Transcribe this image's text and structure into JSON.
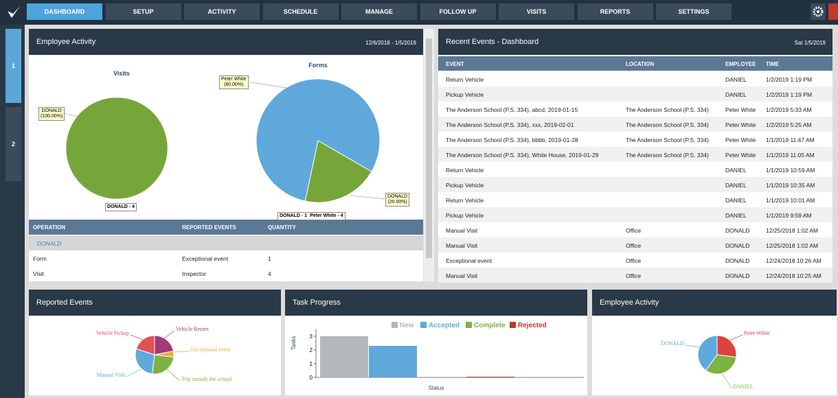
{
  "nav": {
    "items": [
      "DASHBOARD",
      "SETUP",
      "ACTIVITY",
      "SCHEDULE",
      "MANAGE",
      "FOLLOW UP",
      "VISITS",
      "REPORTS",
      "SETTINGS"
    ]
  },
  "side_tabs": [
    "1",
    "2"
  ],
  "employee_activity": {
    "title": "Employee Activity",
    "date_range": "12/6/2018 - 1/5/2019",
    "visits": {
      "type": "pie",
      "title": "Visits",
      "categories": [
        "DONALD"
      ],
      "values": [
        100
      ],
      "value_labels": [
        "(100.00%)"
      ],
      "colors": [
        "#76a63a"
      ],
      "legend": [
        "DONALD - 4"
      ]
    },
    "forms": {
      "type": "pie",
      "title": "Forms",
      "categories": [
        "Peter White",
        "DONALD"
      ],
      "values": [
        80,
        20
      ],
      "value_labels": [
        "(80.00%)",
        "(20.00%)"
      ],
      "colors": [
        "#5fa8dc",
        "#76a63a"
      ],
      "legend": [
        "DONALD - 1",
        "Peter White - 4"
      ]
    },
    "table": {
      "headers": [
        "OPERATION",
        "REPORTED EVENTS",
        "QUANTITY"
      ],
      "group": "DONALD",
      "rows": [
        [
          "Form",
          "Exceptional event",
          1
        ],
        [
          "Visit",
          "Inspector",
          4
        ]
      ]
    }
  },
  "recent_events": {
    "title": "Recent Events - Dashboard",
    "date": "Sat 1/5/2019",
    "headers": [
      "EVENT",
      "LOCATION",
      "EMPLOYEE",
      "TIME"
    ],
    "rows": [
      [
        "Return Vehicle",
        null,
        "DANIEL",
        "1/2/2019 1:19 PM"
      ],
      [
        "Pickup Vehicle",
        null,
        "DANIEL",
        "1/2/2019 1:19 PM"
      ],
      [
        "The Anderson School (P.S. 334), abcd, 2019-01-15",
        "The Anderson School (P.S. 334)",
        "Peter White",
        "1/2/2019 5:33 AM"
      ],
      [
        "The Anderson School (P.S. 334), xxx, 2019-02-01",
        "The Anderson School (P.S. 334)",
        "Peter White",
        "1/2/2019 5:25 AM"
      ],
      [
        "The Anderson School (P.S. 334), bbbb, 2019-01-28",
        "The Anderson School (P.S. 334)",
        "Peter White",
        "1/1/2019 11:47 AM"
      ],
      [
        "The Anderson School (P.S. 334), White House, 2019-01-29",
        "The Anderson School (P.S. 334)",
        "Peter White",
        "1/1/2019 11:05 AM"
      ],
      [
        "Return Vehicle",
        null,
        "DANIEL",
        "1/1/2019 10:59 AM"
      ],
      [
        "Pickup Vehicle",
        null,
        "DANIEL",
        "1/1/2019 10:35 AM"
      ],
      [
        "Return Vehicle",
        null,
        "DANIEL",
        "1/1/2019 10:01 AM"
      ],
      [
        "Pickup Vehicle",
        null,
        "DANIEL",
        "1/1/2019 9:59 AM"
      ],
      [
        "Manual Visit",
        "Office",
        "DONALD",
        "12/25/2018 1:02 AM"
      ],
      [
        "Manual Visit",
        "Office",
        "DONALD",
        "12/25/2018 1:02 AM"
      ],
      [
        "Exceptional event",
        "Office",
        "DONALD",
        "12/24/2018 10:26 AM"
      ],
      [
        "Manual Visit",
        "Office",
        "DONALD",
        "12/24/2018 10:25 AM"
      ]
    ]
  },
  "reported_events": {
    "title": "Reported Events",
    "chart": {
      "type": "pie",
      "categories": [
        "Vehicle Return",
        "Exceptional event",
        "Trip outside the school",
        "Manual Visit",
        "Vehicle Pickup"
      ],
      "values": [
        22,
        5,
        25,
        28,
        20
      ],
      "colors": [
        "#a33a78",
        "#f2a93b",
        "#7cb342",
        "#5fa8dc",
        "#e0524f"
      ]
    }
  },
  "task_progress": {
    "title": "Task Progress",
    "chart": {
      "type": "bar",
      "y_label": "Tasks",
      "x_label": "Status",
      "ylim": [
        0,
        3.5
      ],
      "yticks": [
        0,
        1,
        2,
        3
      ],
      "series": [
        {
          "name": "New",
          "color": "#b3b8bb",
          "values": [
            3
          ]
        },
        {
          "name": "Accepted",
          "color": "#5fa8dc",
          "values": [
            2.3
          ]
        },
        {
          "name": "Complete",
          "color": "#7cb342",
          "values": [
            0
          ]
        },
        {
          "name": "Rejected",
          "color": "#c0392b",
          "values": [
            0.05
          ]
        }
      ]
    }
  },
  "employee_activity_2": {
    "title": "Employee Activity",
    "chart": {
      "type": "pie",
      "categories": [
        "Peter White",
        "DANIEL",
        "DONALD"
      ],
      "values": [
        27,
        33,
        40
      ],
      "colors": [
        "#d9443f",
        "#7cb342",
        "#5fa8dc"
      ]
    }
  }
}
